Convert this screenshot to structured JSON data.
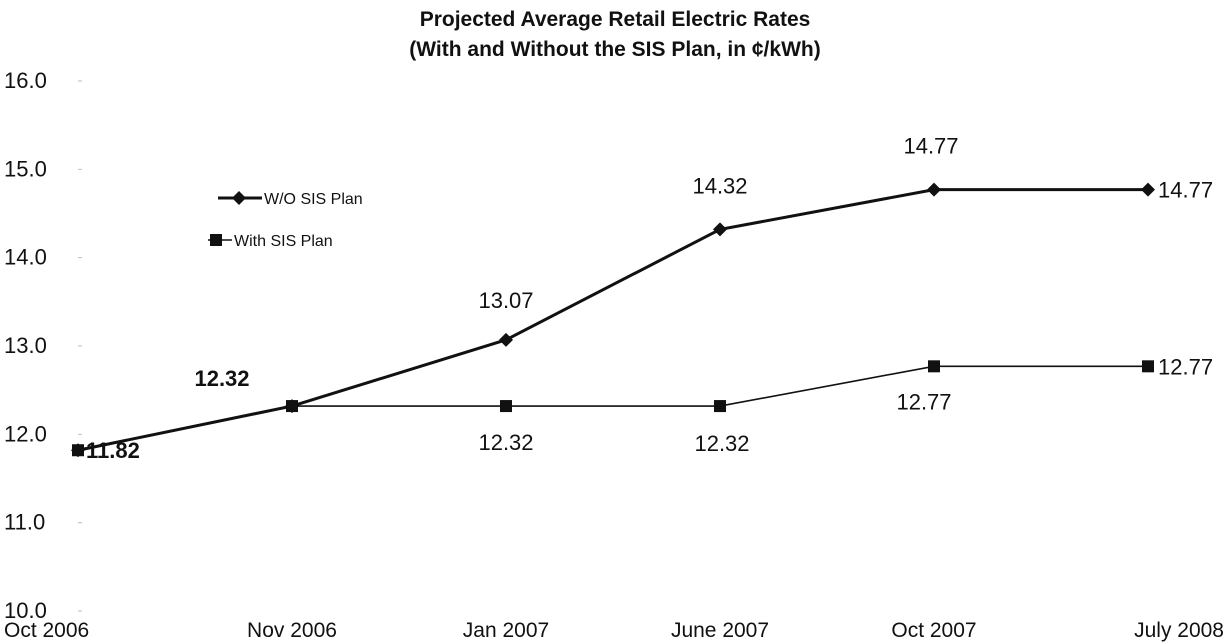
{
  "chart_data": {
    "type": "line",
    "title": "Projected Average Retail Electric Rates",
    "subtitle": "(With and Without the SIS Plan, in ¢/kWh)",
    "categories": [
      "Oct 2006",
      "Nov 2006",
      "Jan 2007",
      "June 2007",
      "Oct 2007",
      "July 2008"
    ],
    "ylim": [
      10.0,
      16.0
    ],
    "yticks": [
      "10.0",
      "11.0",
      "12.0",
      "13.0",
      "14.0",
      "15.0",
      "16.0"
    ],
    "grid": false,
    "legend_position": "upper-left",
    "series": [
      {
        "name": "W/O SIS Plan",
        "marker": "diamond",
        "color": "#111111",
        "values": [
          11.82,
          12.32,
          13.07,
          14.32,
          14.77,
          14.77
        ],
        "labels": [
          "11.82",
          "12.32",
          "13.07",
          "14.32",
          "14.77",
          "14.77"
        ]
      },
      {
        "name": "With SIS Plan",
        "marker": "square",
        "color": "#111111",
        "values": [
          11.82,
          12.32,
          12.32,
          12.32,
          12.77,
          12.77
        ],
        "labels": [
          "",
          "",
          "12.32",
          "12.32",
          "12.77",
          "12.77"
        ]
      }
    ]
  }
}
